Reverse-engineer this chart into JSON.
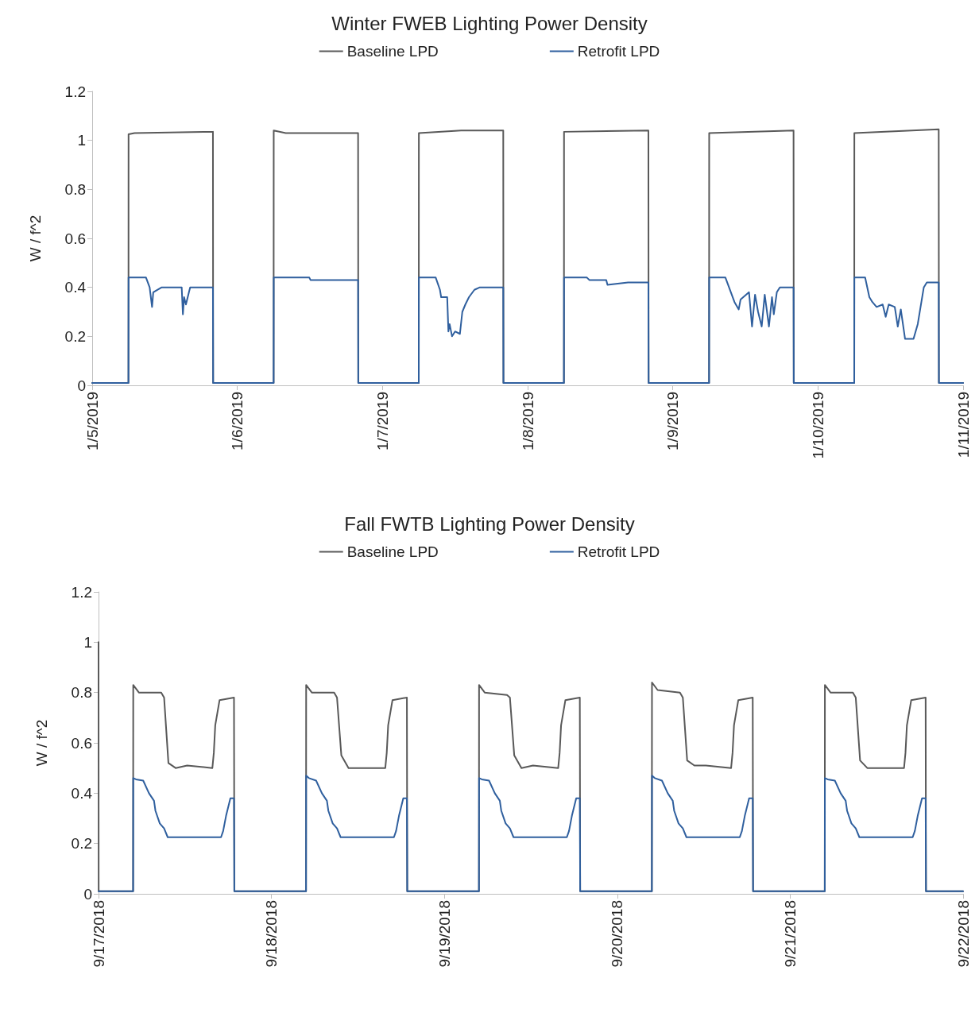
{
  "chart_data": [
    {
      "type": "line",
      "title": "Winter FWEB Lighting Power Density",
      "ylabel": "W / f^2",
      "legend": "top",
      "marker": "none",
      "xlim": [
        "2019-01-05",
        "2019-01-11"
      ],
      "xticks": [
        {
          "value": "2019-01-05",
          "label": "1/5/2019"
        },
        {
          "value": "2019-01-06",
          "label": "1/6/2019"
        },
        {
          "value": "2019-01-07",
          "label": "1/7/2019"
        },
        {
          "value": "2019-01-08",
          "label": "1/8/2019"
        },
        {
          "value": "2019-01-09",
          "label": "1/9/2019"
        },
        {
          "value": "2019-01-10",
          "label": "1/10/2019"
        },
        {
          "value": "2019-01-11",
          "label": "1/11/2019"
        }
      ],
      "ylim": [
        0,
        1.2
      ],
      "yticks": [
        0,
        0.2,
        0.4,
        0.6,
        0.8,
        1,
        1.2
      ],
      "series": [
        {
          "name": "Baseline LPD",
          "color": "#595959",
          "x": [
            "2019-01-05T00:00",
            "2019-01-05T06:00",
            "2019-01-05T06:01",
            "2019-01-05T07:00",
            "2019-01-05T19:58",
            "2019-01-05T20:00",
            "2019-01-06T06:00",
            "2019-01-06T06:01",
            "2019-01-06T08:00",
            "2019-01-06T19:58",
            "2019-01-06T20:00",
            "2019-01-07T06:00",
            "2019-01-07T06:01",
            "2019-01-07T13:00",
            "2019-01-07T19:58",
            "2019-01-07T20:00",
            "2019-01-08T06:00",
            "2019-01-08T06:01",
            "2019-01-08T19:58",
            "2019-01-08T20:00",
            "2019-01-09T06:00",
            "2019-01-09T06:01",
            "2019-01-09T19:58",
            "2019-01-09T20:00",
            "2019-01-10T06:00",
            "2019-01-10T06:01",
            "2019-01-10T19:58",
            "2019-01-10T20:00",
            "2019-01-11T00:00"
          ],
          "values": [
            0.01,
            0.01,
            1.025,
            1.03,
            1.035,
            0.01,
            0.01,
            1.04,
            1.03,
            1.03,
            0.01,
            0.01,
            1.03,
            1.04,
            1.04,
            0.01,
            0.01,
            1.035,
            1.04,
            0.01,
            0.01,
            1.03,
            1.04,
            0.01,
            0.01,
            1.03,
            1.045,
            0.01,
            0.01
          ]
        },
        {
          "name": "Retrofit LPD",
          "color": "#2f5f9e",
          "x": [
            "2019-01-05T00:00",
            "2019-01-05T06:00",
            "2019-01-05T06:01",
            "2019-01-05T08:54",
            "2019-01-05T09:30",
            "2019-01-05T09:54",
            "2019-01-05T10:06",
            "2019-01-05T11:30",
            "2019-01-05T14:48",
            "2019-01-05T15:00",
            "2019-01-05T15:12",
            "2019-01-05T15:30",
            "2019-01-05T16:00",
            "2019-01-05T16:12",
            "2019-01-05T19:58",
            "2019-01-05T20:00",
            "2019-01-06T06:00",
            "2019-01-06T06:01",
            "2019-01-06T11:54",
            "2019-01-06T12:06",
            "2019-01-06T19:58",
            "2019-01-06T20:00",
            "2019-01-07T06:00",
            "2019-01-07T06:01",
            "2019-01-07T08:48",
            "2019-01-07T09:30",
            "2019-01-07T09:42",
            "2019-01-07T10:42",
            "2019-01-07T10:54",
            "2019-01-07T11:06",
            "2019-01-07T11:30",
            "2019-01-07T12:00",
            "2019-01-07T12:48",
            "2019-01-07T13:12",
            "2019-01-07T13:42",
            "2019-01-07T14:18",
            "2019-01-07T15:12",
            "2019-01-07T16:06",
            "2019-01-07T19:58",
            "2019-01-07T20:00",
            "2019-01-08T06:00",
            "2019-01-08T06:01",
            "2019-01-08T09:48",
            "2019-01-08T10:12",
            "2019-01-08T13:00",
            "2019-01-08T13:12",
            "2019-01-08T16:36",
            "2019-01-08T19:58",
            "2019-01-08T20:00",
            "2019-01-09T06:00",
            "2019-01-09T06:01",
            "2019-01-09T08:42",
            "2019-01-09T10:12",
            "2019-01-09T10:54",
            "2019-01-09T11:12",
            "2019-01-09T12:36",
            "2019-01-09T13:06",
            "2019-01-09T13:36",
            "2019-01-09T14:06",
            "2019-01-09T14:42",
            "2019-01-09T15:12",
            "2019-01-09T15:54",
            "2019-01-09T16:24",
            "2019-01-09T16:42",
            "2019-01-09T17:12",
            "2019-01-09T17:42",
            "2019-01-09T19:58",
            "2019-01-09T20:00",
            "2019-01-10T06:00",
            "2019-01-10T06:01",
            "2019-01-10T07:48",
            "2019-01-10T08:30",
            "2019-01-10T09:00",
            "2019-01-10T09:42",
            "2019-01-10T10:42",
            "2019-01-10T11:12",
            "2019-01-10T11:42",
            "2019-01-10T12:42",
            "2019-01-10T13:12",
            "2019-01-10T13:42",
            "2019-01-10T14:24",
            "2019-01-10T15:48",
            "2019-01-10T16:30",
            "2019-01-10T17:30",
            "2019-01-10T18:00",
            "2019-01-10T19:58",
            "2019-01-10T20:00",
            "2019-01-11T00:00"
          ],
          "values": [
            0.01,
            0.01,
            0.44,
            0.44,
            0.4,
            0.32,
            0.38,
            0.4,
            0.4,
            0.29,
            0.36,
            0.33,
            0.38,
            0.4,
            0.4,
            0.01,
            0.01,
            0.44,
            0.44,
            0.43,
            0.43,
            0.01,
            0.01,
            0.44,
            0.44,
            0.39,
            0.36,
            0.36,
            0.22,
            0.25,
            0.2,
            0.22,
            0.21,
            0.3,
            0.33,
            0.36,
            0.39,
            0.4,
            0.4,
            0.01,
            0.01,
            0.44,
            0.44,
            0.43,
            0.43,
            0.41,
            0.42,
            0.42,
            0.01,
            0.01,
            0.44,
            0.44,
            0.34,
            0.31,
            0.35,
            0.38,
            0.24,
            0.37,
            0.3,
            0.24,
            0.37,
            0.24,
            0.36,
            0.29,
            0.38,
            0.4,
            0.4,
            0.01,
            0.01,
            0.44,
            0.44,
            0.36,
            0.34,
            0.32,
            0.33,
            0.28,
            0.33,
            0.32,
            0.24,
            0.31,
            0.19,
            0.19,
            0.25,
            0.4,
            0.42,
            0.42,
            0.01,
            0.01
          ]
        }
      ]
    },
    {
      "type": "line",
      "title": "Fall FWTB Lighting Power Density",
      "ylabel": "W / f^2",
      "legend": "top",
      "marker": "none",
      "xlim": [
        "2018-09-17",
        "2018-09-22"
      ],
      "xticks": [
        {
          "value": "2018-09-17",
          "label": "9/17/2018"
        },
        {
          "value": "2018-09-18",
          "label": "9/18/2018"
        },
        {
          "value": "2018-09-19",
          "label": "9/19/2018"
        },
        {
          "value": "2018-09-20",
          "label": "9/20/2018"
        },
        {
          "value": "2018-09-21",
          "label": "9/21/2018"
        },
        {
          "value": "2018-09-22",
          "label": "9/22/2018"
        }
      ],
      "ylim": [
        0,
        1.2
      ],
      "yticks": [
        0,
        0.2,
        0.4,
        0.6,
        0.8,
        1,
        1.2
      ],
      "series": [
        {
          "name": "Baseline LPD",
          "color": "#595959",
          "x": [
            "2018-09-17T00:00",
            "2018-09-17T00:01",
            "2018-09-17T04:48",
            "2018-09-17T04:49",
            "2018-09-17T05:36",
            "2018-09-17T08:42",
            "2018-09-17T09:06",
            "2018-09-17T09:42",
            "2018-09-17T10:42",
            "2018-09-17T12:18",
            "2018-09-17T15:48",
            "2018-09-17T16:00",
            "2018-09-17T16:12",
            "2018-09-17T16:48",
            "2018-09-17T18:48",
            "2018-09-17T18:51",
            "2018-09-18T04:48",
            "2018-09-18T04:49",
            "2018-09-18T05:36",
            "2018-09-18T08:42",
            "2018-09-18T09:06",
            "2018-09-18T09:42",
            "2018-09-18T10:42",
            "2018-09-18T12:18",
            "2018-09-18T15:48",
            "2018-09-18T16:00",
            "2018-09-18T16:12",
            "2018-09-18T16:48",
            "2018-09-18T18:48",
            "2018-09-18T18:51",
            "2018-09-19T04:48",
            "2018-09-19T04:49",
            "2018-09-19T05:36",
            "2018-09-19T08:42",
            "2018-09-19T09:06",
            "2018-09-19T09:42",
            "2018-09-19T10:42",
            "2018-09-19T12:18",
            "2018-09-19T15:48",
            "2018-09-19T16:00",
            "2018-09-19T16:12",
            "2018-09-19T16:48",
            "2018-09-19T18:48",
            "2018-09-19T18:51",
            "2018-09-20T04:48",
            "2018-09-20T04:49",
            "2018-09-20T05:36",
            "2018-09-20T08:42",
            "2018-09-20T09:06",
            "2018-09-20T09:42",
            "2018-09-20T10:42",
            "2018-09-20T12:18",
            "2018-09-20T15:48",
            "2018-09-20T16:00",
            "2018-09-20T16:12",
            "2018-09-20T16:48",
            "2018-09-20T18:48",
            "2018-09-20T18:51",
            "2018-09-21T04:48",
            "2018-09-21T04:49",
            "2018-09-21T05:36",
            "2018-09-21T08:42",
            "2018-09-21T09:06",
            "2018-09-21T09:42",
            "2018-09-21T10:42",
            "2018-09-21T12:18",
            "2018-09-21T15:48",
            "2018-09-21T16:00",
            "2018-09-21T16:12",
            "2018-09-21T16:48",
            "2018-09-21T18:48",
            "2018-09-21T18:51",
            "2018-09-22T00:00"
          ],
          "values": [
            1.0,
            0.01,
            0.01,
            0.83,
            0.8,
            0.8,
            0.78,
            0.52,
            0.5,
            0.51,
            0.5,
            0.56,
            0.67,
            0.77,
            0.78,
            0.01,
            0.01,
            0.83,
            0.8,
            0.8,
            0.78,
            0.55,
            0.5,
            0.5,
            0.5,
            0.56,
            0.67,
            0.77,
            0.78,
            0.01,
            0.01,
            0.83,
            0.8,
            0.79,
            0.78,
            0.55,
            0.5,
            0.51,
            0.5,
            0.56,
            0.67,
            0.77,
            0.78,
            0.01,
            0.01,
            0.84,
            0.81,
            0.8,
            0.78,
            0.53,
            0.51,
            0.51,
            0.5,
            0.56,
            0.67,
            0.77,
            0.78,
            0.01,
            0.01,
            0.83,
            0.8,
            0.8,
            0.78,
            0.53,
            0.5,
            0.5,
            0.5,
            0.56,
            0.67,
            0.77,
            0.78,
            0.01,
            0.01
          ]
        },
        {
          "name": "Retrofit LPD",
          "color": "#2f5f9e",
          "x": [
            "2018-09-17T00:00",
            "2018-09-17T04:48",
            "2018-09-17T04:49",
            "2018-09-17T05:12",
            "2018-09-17T06:12",
            "2018-09-17T07:00",
            "2018-09-17T07:42",
            "2018-09-17T07:54",
            "2018-09-17T08:30",
            "2018-09-17T09:06",
            "2018-09-17T09:36",
            "2018-09-17T17:00",
            "2018-09-17T17:18",
            "2018-09-17T17:42",
            "2018-09-17T18:18",
            "2018-09-17T18:48",
            "2018-09-17T18:51",
            "2018-09-18T04:48",
            "2018-09-18T04:49",
            "2018-09-18T05:12",
            "2018-09-18T06:12",
            "2018-09-18T07:00",
            "2018-09-18T07:42",
            "2018-09-18T07:54",
            "2018-09-18T08:30",
            "2018-09-18T09:06",
            "2018-09-18T09:36",
            "2018-09-18T17:00",
            "2018-09-18T17:18",
            "2018-09-18T17:42",
            "2018-09-18T18:18",
            "2018-09-18T18:48",
            "2018-09-18T18:51",
            "2018-09-19T04:48",
            "2018-09-19T04:49",
            "2018-09-19T05:12",
            "2018-09-19T06:12",
            "2018-09-19T07:00",
            "2018-09-19T07:42",
            "2018-09-19T07:54",
            "2018-09-19T08:30",
            "2018-09-19T09:06",
            "2018-09-19T09:36",
            "2018-09-19T17:00",
            "2018-09-19T17:18",
            "2018-09-19T17:42",
            "2018-09-19T18:18",
            "2018-09-19T18:48",
            "2018-09-19T18:51",
            "2018-09-20T04:48",
            "2018-09-20T04:49",
            "2018-09-20T05:12",
            "2018-09-20T06:12",
            "2018-09-20T07:00",
            "2018-09-20T07:42",
            "2018-09-20T07:54",
            "2018-09-20T08:30",
            "2018-09-20T09:06",
            "2018-09-20T09:36",
            "2018-09-20T17:00",
            "2018-09-20T17:18",
            "2018-09-20T17:42",
            "2018-09-20T18:18",
            "2018-09-20T18:48",
            "2018-09-20T18:51",
            "2018-09-21T04:48",
            "2018-09-21T04:49",
            "2018-09-21T05:12",
            "2018-09-21T06:12",
            "2018-09-21T07:00",
            "2018-09-21T07:42",
            "2018-09-21T07:54",
            "2018-09-21T08:30",
            "2018-09-21T09:06",
            "2018-09-21T09:36",
            "2018-09-21T17:00",
            "2018-09-21T17:18",
            "2018-09-21T17:42",
            "2018-09-21T18:18",
            "2018-09-21T18:48",
            "2018-09-21T18:51",
            "2018-09-22T00:00"
          ],
          "values": [
            0.01,
            0.01,
            0.46,
            0.455,
            0.45,
            0.4,
            0.37,
            0.33,
            0.28,
            0.26,
            0.225,
            0.225,
            0.25,
            0.31,
            0.38,
            0.38,
            0.01,
            0.01,
            0.47,
            0.46,
            0.45,
            0.4,
            0.37,
            0.33,
            0.28,
            0.26,
            0.225,
            0.225,
            0.25,
            0.31,
            0.38,
            0.38,
            0.01,
            0.01,
            0.46,
            0.455,
            0.45,
            0.4,
            0.37,
            0.33,
            0.28,
            0.26,
            0.225,
            0.225,
            0.25,
            0.31,
            0.38,
            0.38,
            0.01,
            0.01,
            0.47,
            0.46,
            0.45,
            0.4,
            0.37,
            0.33,
            0.28,
            0.26,
            0.225,
            0.225,
            0.25,
            0.31,
            0.38,
            0.38,
            0.01,
            0.01,
            0.46,
            0.455,
            0.45,
            0.4,
            0.37,
            0.33,
            0.28,
            0.26,
            0.225,
            0.225,
            0.25,
            0.31,
            0.38,
            0.38,
            0.01,
            0.01
          ]
        }
      ]
    }
  ]
}
